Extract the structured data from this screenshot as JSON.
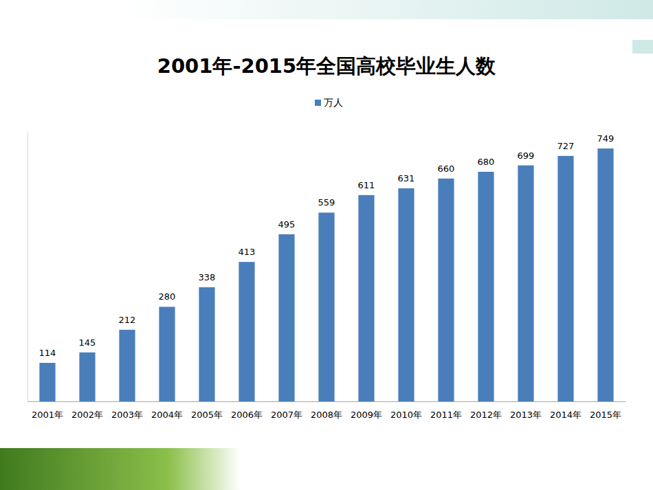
{
  "chart_data": {
    "type": "bar",
    "title": "2001年-2015年全国高校毕业生人数",
    "categories": [
      "2001年",
      "2002年",
      "2003年",
      "2004年",
      "2005年",
      "2006年",
      "2007年",
      "2008年",
      "2009年",
      "2010年",
      "2011年",
      "2012年",
      "2013年",
      "2014年",
      "2015年"
    ],
    "series": [
      {
        "name": "万人",
        "color": "#4a7ebb",
        "values": [
          114,
          145,
          212,
          280,
          338,
          413,
          495,
          559,
          611,
          631,
          660,
          680,
          699,
          727,
          749
        ]
      }
    ],
    "ylim": [
      0,
      800
    ],
    "grid": false,
    "legend": "top",
    "data_labels": true,
    "tick_labels": "x"
  }
}
